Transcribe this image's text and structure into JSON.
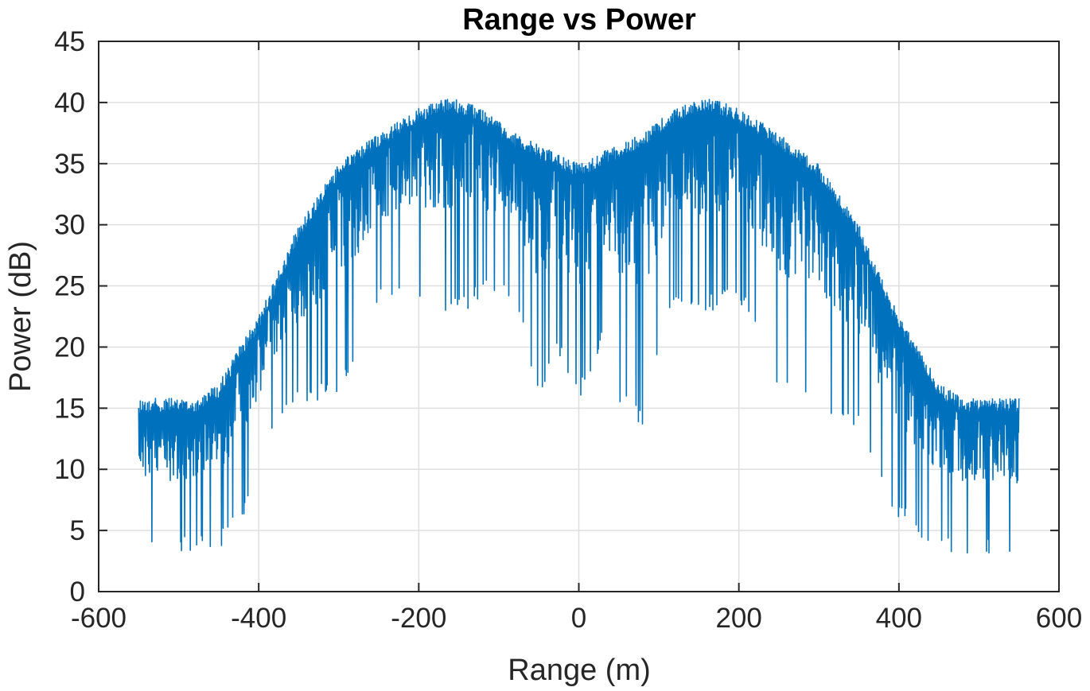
{
  "chart_data": {
    "type": "line",
    "title": "Range vs Power",
    "xlabel": "Range (m)",
    "ylabel": "Power (dB)",
    "xlim": [
      -600,
      600
    ],
    "ylim": [
      0,
      45
    ],
    "xticks": [
      -600,
      -400,
      -200,
      0,
      200,
      400,
      600
    ],
    "yticks": [
      0,
      5,
      10,
      15,
      20,
      25,
      30,
      35,
      40,
      45
    ],
    "grid": true,
    "series": [
      {
        "color": "#0072bd",
        "envelope": {
          "x": [
            -550,
            -480,
            -450,
            -420,
            -400,
            -380,
            -350,
            -300,
            -250,
            -200,
            -170,
            -150,
            -120,
            -80,
            -50,
            -30,
            0,
            30,
            50,
            80,
            120,
            150,
            170,
            200,
            250,
            300,
            350,
            380,
            400,
            420,
            450,
            480,
            550
          ],
          "upper": [
            15.8,
            15.8,
            17,
            20.5,
            22.5,
            25.5,
            30,
            35,
            37.5,
            39.5,
            40.3,
            40.2,
            39.5,
            37.5,
            36.5,
            36,
            35,
            36,
            36.5,
            37.5,
            39.5,
            40.2,
            40.3,
            39.5,
            37.5,
            35,
            30,
            25.5,
            22.5,
            20.5,
            17,
            15.8,
            15.8
          ],
          "lower": [
            3,
            3.2,
            3.2,
            6,
            10,
            13,
            15,
            16,
            24,
            24,
            23,
            22.5,
            24,
            24,
            15.5,
            20,
            15.5,
            20,
            15.5,
            13.5,
            24,
            22.5,
            23,
            24,
            16,
            15,
            13,
            8,
            6,
            4.5,
            3.2,
            3,
            2.7
          ]
        }
      }
    ]
  }
}
